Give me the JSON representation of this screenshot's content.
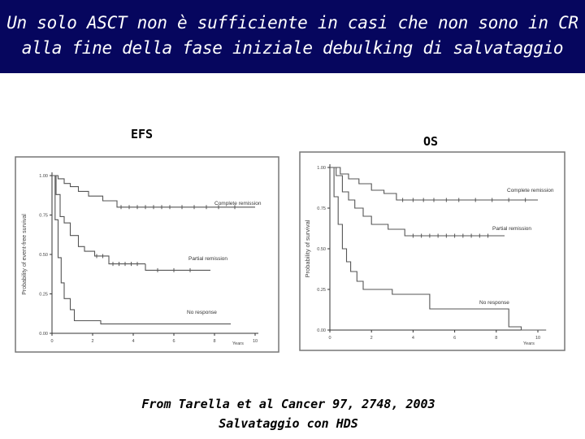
{
  "title": {
    "line1": "Un solo ASCT non è sufficiente in casi che non sono in CR",
    "line2": "alla fine della fase iniziale debulking di salvataggio"
  },
  "colors": {
    "title_bg": "#06065e",
    "title_text": "#ffffff",
    "curve": "#555555"
  },
  "chart_data": [
    {
      "type": "line",
      "panel_label": "EFS",
      "ylabel": "Probability of event-free survival",
      "xlabel": "Years",
      "xlim": [
        0,
        10
      ],
      "ylim": [
        0,
        1
      ],
      "x_ticks": [
        0,
        2,
        4,
        6,
        8,
        10
      ],
      "y_ticks": [
        0,
        0.25,
        0.5,
        0.75,
        1
      ],
      "x_tick_labels": [
        "0",
        "2",
        "4",
        "6",
        "8",
        "10"
      ],
      "y_tick_labels": [
        "0.00",
        "0.25",
        "0.50",
        "0.75",
        "1.00"
      ],
      "series": [
        {
          "name": "Complete remission",
          "label": "Complete remission",
          "x": [
            0,
            0.3,
            0.3,
            0.6,
            0.6,
            0.9,
            0.9,
            1.3,
            1.3,
            1.8,
            1.8,
            2.5,
            2.5,
            3.2,
            3.2,
            10
          ],
          "y": [
            1,
            1,
            0.98,
            0.98,
            0.95,
            0.95,
            0.93,
            0.93,
            0.9,
            0.9,
            0.87,
            0.87,
            0.84,
            0.84,
            0.8,
            0.8
          ],
          "censor_x": [
            3.4,
            3.8,
            4.2,
            4.6,
            5.0,
            5.4,
            5.8,
            6.4,
            7.0,
            7.6,
            8.2,
            9.0
          ]
        },
        {
          "name": "Partial remission",
          "label": "Partial remission",
          "x": [
            0,
            0.2,
            0.2,
            0.4,
            0.4,
            0.6,
            0.6,
            0.9,
            0.9,
            1.3,
            1.3,
            1.6,
            1.6,
            2.1,
            2.1,
            2.8,
            2.8,
            4.6
          ],
          "y": [
            1,
            1,
            0.88,
            0.88,
            0.74,
            0.74,
            0.7,
            0.7,
            0.62,
            0.62,
            0.55,
            0.55,
            0.52,
            0.52,
            0.49,
            0.49,
            0.44,
            0.44
          ],
          "censor_x": [
            2.2,
            2.5,
            3.0,
            3.3,
            3.6,
            3.9,
            4.2
          ]
        },
        {
          "name": "Partial remission tail",
          "label": "",
          "x": [
            4.6,
            4.6,
            7.8
          ],
          "y": [
            0.44,
            0.4,
            0.4
          ],
          "censor_x": [
            5.2,
            6.0,
            6.8
          ]
        },
        {
          "name": "No response",
          "label": "No response",
          "x": [
            0,
            0.15,
            0.15,
            0.3,
            0.3,
            0.45,
            0.45,
            0.6,
            0.6,
            0.9,
            0.9,
            1.1,
            1.1,
            2.4,
            2.4,
            8.8
          ],
          "y": [
            1,
            1,
            0.72,
            0.72,
            0.48,
            0.48,
            0.32,
            0.32,
            0.22,
            0.22,
            0.15,
            0.15,
            0.08,
            0.08,
            0.06,
            0.06
          ],
          "censor_x": []
        }
      ]
    },
    {
      "type": "line",
      "panel_label": "OS",
      "ylabel": "Probability of survival",
      "xlabel": "Years",
      "xlim": [
        0,
        10
      ],
      "ylim": [
        0,
        1
      ],
      "x_ticks": [
        0,
        2,
        4,
        6,
        8,
        10
      ],
      "y_ticks": [
        0,
        0.25,
        0.5,
        0.75,
        1
      ],
      "x_tick_labels": [
        "0",
        "2",
        "4",
        "6",
        "8",
        "10"
      ],
      "y_tick_labels": [
        "0.00",
        "0.25",
        "0.50",
        "0.75",
        "1.00"
      ],
      "series": [
        {
          "name": "Complete remission",
          "label": "Complete remission",
          "x": [
            0,
            0.5,
            0.5,
            0.9,
            0.9,
            1.4,
            1.4,
            2.0,
            2.0,
            2.6,
            2.6,
            3.2,
            3.2,
            10
          ],
          "y": [
            1,
            1,
            0.96,
            0.96,
            0.93,
            0.93,
            0.9,
            0.9,
            0.86,
            0.86,
            0.84,
            0.84,
            0.8,
            0.8
          ],
          "censor_x": [
            3.5,
            4.0,
            4.5,
            5.0,
            5.6,
            6.2,
            7.0,
            7.8,
            8.6,
            9.4
          ]
        },
        {
          "name": "Partial remission",
          "label": "Partial remission",
          "x": [
            0,
            0.3,
            0.3,
            0.6,
            0.6,
            0.9,
            0.9,
            1.2,
            1.2,
            1.6,
            1.6,
            2.0,
            2.0,
            2.8,
            2.8,
            3.6,
            3.6,
            8.4
          ],
          "y": [
            1,
            1,
            0.95,
            0.95,
            0.85,
            0.85,
            0.8,
            0.8,
            0.75,
            0.75,
            0.7,
            0.7,
            0.65,
            0.65,
            0.62,
            0.62,
            0.58,
            0.58
          ],
          "censor_x": [
            4.0,
            4.4,
            4.8,
            5.2,
            5.6,
            6.0,
            6.4,
            6.8,
            7.2,
            7.6
          ]
        },
        {
          "name": "No response",
          "label": "No response",
          "x": [
            0,
            0.2,
            0.2,
            0.4,
            0.4,
            0.6,
            0.6,
            0.8,
            0.8,
            1.0,
            1.0,
            1.3,
            1.3,
            1.6,
            1.6,
            3.0,
            3.0,
            4.8,
            4.8,
            8.6,
            8.6,
            9.2,
            9.2,
            10.4
          ],
          "y": [
            1,
            1,
            0.82,
            0.82,
            0.65,
            0.65,
            0.5,
            0.5,
            0.42,
            0.42,
            0.36,
            0.36,
            0.3,
            0.3,
            0.25,
            0.25,
            0.22,
            0.22,
            0.13,
            0.13,
            0.02,
            0.02,
            0.0,
            0.0
          ],
          "censor_x": []
        }
      ]
    }
  ],
  "footer": {
    "line1": "From Tarella et al Cancer 97, 2748, 2003",
    "line2": "Salvataggio con HDS"
  }
}
